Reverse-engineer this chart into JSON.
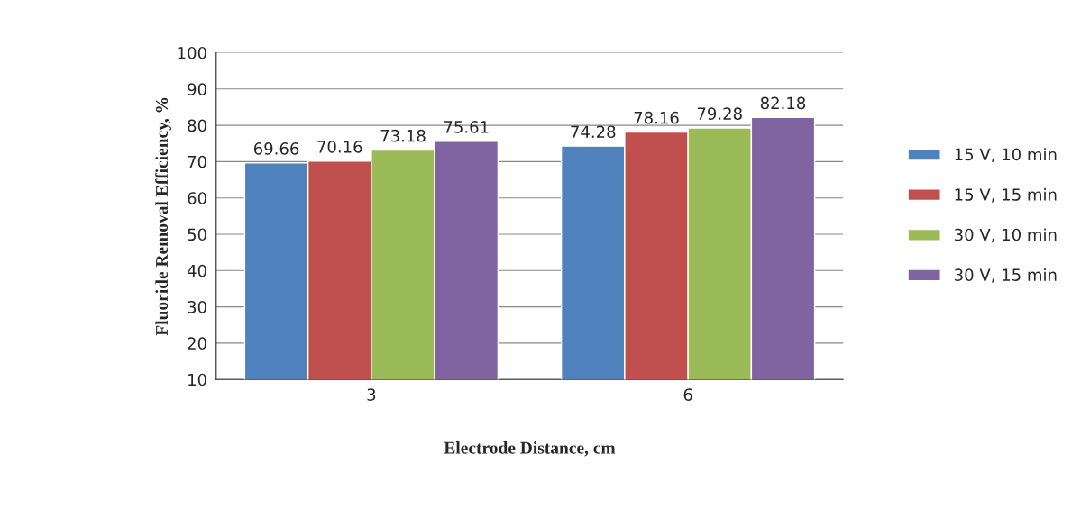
{
  "chart_data": {
    "type": "bar",
    "categories": [
      "3",
      "6"
    ],
    "series": [
      {
        "name": "15 V, 10 min",
        "color": "#4f81bd",
        "values": [
          69.66,
          74.28
        ]
      },
      {
        "name": "15 V, 15 min",
        "color": "#c0504d",
        "values": [
          70.16,
          78.16
        ]
      },
      {
        "name": "30 V, 10 min",
        "color": "#9bbb59",
        "values": [
          73.18,
          79.28
        ]
      },
      {
        "name": "30 V, 15 min",
        "color": "#8064a2",
        "values": [
          75.61,
          82.18
        ]
      }
    ],
    "xlabel": "Electrode Distance, cm",
    "ylabel": "Fluoride Removal Efficiency, %",
    "ylim": [
      10,
      100
    ],
    "yticks": [
      10,
      20,
      30,
      40,
      50,
      60,
      70,
      80,
      90,
      100
    ],
    "grid": "y",
    "legend": "right",
    "data_labels": true
  }
}
